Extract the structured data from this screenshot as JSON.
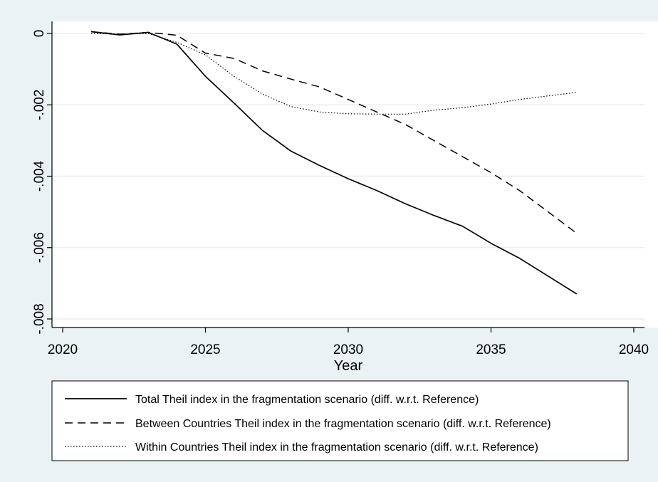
{
  "chart_data": {
    "type": "line",
    "xlabel": "Year",
    "ylabel": "",
    "xlim": [
      2020,
      2040
    ],
    "ylim": [
      -0.008,
      0
    ],
    "x_ticks": [
      2020,
      2025,
      2030,
      2035,
      2040
    ],
    "x_tick_labels": [
      "2020",
      "2025",
      "2030",
      "2035",
      "2040"
    ],
    "y_ticks": [
      0,
      -0.002,
      -0.004,
      -0.006,
      -0.008
    ],
    "y_tick_labels": [
      "0",
      "-.002",
      "-.004",
      "-.006",
      "-.008"
    ],
    "grid": "horizontal",
    "legend_position": "bottom",
    "series": [
      {
        "name": "Total Theil index in the fragmentation scenario (diff. w.r.t. Reference)",
        "style": "solid",
        "color": "#000000",
        "x": [
          2021,
          2022,
          2023,
          2024,
          2025,
          2026,
          2027,
          2028,
          2029,
          2030,
          2031,
          2032,
          2033,
          2034,
          2035,
          2036,
          2037,
          2038
        ],
        "values": [
          5e-05,
          -4e-05,
          3e-05,
          -0.0003,
          -0.0012,
          -0.00195,
          -0.00272,
          -0.0033,
          -0.0037,
          -0.00407,
          -0.0044,
          -0.00477,
          -0.0051,
          -0.0054,
          -0.00588,
          -0.0063,
          -0.0068,
          -0.0073
        ]
      },
      {
        "name": "Between Countries Theil index in the fragmentation scenario (diff. w.r.t. Reference)",
        "style": "dashed",
        "color": "#000000",
        "x": [
          2021,
          2022,
          2023,
          2024,
          2025,
          2026,
          2027,
          2028,
          2029,
          2030,
          2031,
          2032,
          2033,
          2034,
          2035,
          2036,
          2037,
          2038
        ],
        "values": [
          5e-05,
          -2e-05,
          3e-05,
          -5e-05,
          -0.00055,
          -0.0007,
          -0.00105,
          -0.00128,
          -0.0015,
          -0.00185,
          -0.0022,
          -0.00255,
          -0.003,
          -0.00345,
          -0.0039,
          -0.0044,
          -0.005,
          -0.0056
        ]
      },
      {
        "name": "Within Countries Theil index in the fragmentation scenario (diff. w.r.t. Reference)",
        "style": "dotted",
        "color": "#000000",
        "x": [
          2021,
          2022,
          2023,
          2024,
          2025,
          2026,
          2027,
          2028,
          2029,
          2030,
          2031,
          2032,
          2033,
          2034,
          2035,
          2036,
          2037,
          2038
        ],
        "values": [
          0.0,
          -2e-05,
          0.0,
          -0.00025,
          -0.0006,
          -0.0012,
          -0.0017,
          -0.00205,
          -0.0022,
          -0.00225,
          -0.00226,
          -0.00226,
          -0.00215,
          -0.00208,
          -0.00198,
          -0.00185,
          -0.00175,
          -0.00165
        ]
      }
    ]
  }
}
